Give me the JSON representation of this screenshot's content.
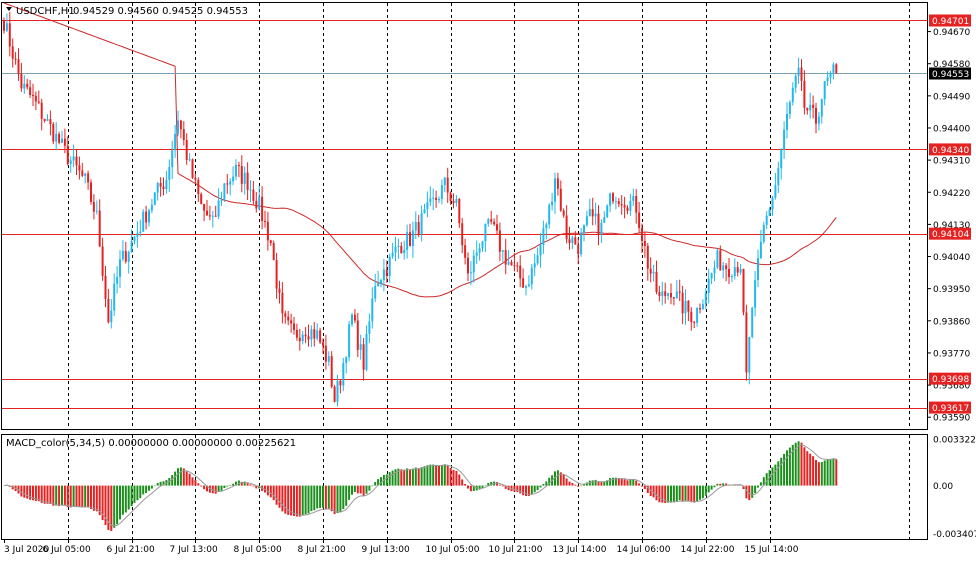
{
  "header": {
    "symbol_text": "USDCHF,H1",
    "ohlc_text": "0.94529 0.94560 0.94525 0.94553"
  },
  "macd_header": {
    "text": "MACD_color(5,34,5) 0.00000000 0.00000000 0.00225621"
  },
  "colors": {
    "bull": "#22b7ee",
    "bear": "#e52222",
    "ma": "#cc2a2a",
    "hline": "#e52222",
    "current_line": "#7a9fb5",
    "macd_up": "#1b8f1b",
    "macd_down": "#e52222",
    "signal": "#9a9a9a",
    "grid": "#000000",
    "axis_text": "#000000",
    "tag_bg": "#e52222",
    "tag_text": "#ffffff",
    "current_tag_bg": "#000000"
  },
  "chart_data": {
    "type": "candlestick",
    "symbol": "USDCHF",
    "timeframe": "H1",
    "price_ylim": [
      0.93557,
      0.9475
    ],
    "price_ticks": [
      "0.94670",
      "0.94580",
      "0.94490",
      "0.94400",
      "0.94310",
      "0.94220",
      "0.94130",
      "0.94040",
      "0.93950",
      "0.93860",
      "0.93770",
      "0.93680",
      "0.93590"
    ],
    "horizontal_lines": [
      "0.94701",
      "0.94340",
      "0.94104",
      "0.93698",
      "0.93617"
    ],
    "current_price": "0.94553",
    "x_labels": [
      "3 Jul 2020",
      "6 Jul 05:00",
      "6 Jul 21:00",
      "7 Jul 13:00",
      "8 Jul 05:00",
      "8 Jul 21:00",
      "9 Jul 13:00",
      "10 Jul 05:00",
      "10 Jul 21:00",
      "13 Jul 14:00",
      "14 Jul 06:00",
      "14 Jul 22:00",
      "15 Jul 14:00"
    ],
    "macd": {
      "ticks": [
        "0.0033223",
        "0.00",
        "-0.0034078"
      ],
      "ylim": [
        -0.0038,
        0.0036
      ],
      "last": [
        "0.00000000",
        "0.00000000",
        "0.00225621"
      ]
    },
    "key_points": [
      [
        0,
        0.947
      ],
      [
        6,
        0.9452
      ],
      [
        10,
        0.9448
      ],
      [
        16,
        0.944
      ],
      [
        22,
        0.9432
      ],
      [
        28,
        0.9425
      ],
      [
        32,
        0.9415
      ],
      [
        36,
        0.9386
      ],
      [
        40,
        0.9402
      ],
      [
        46,
        0.9411
      ],
      [
        52,
        0.9421
      ],
      [
        56,
        0.9426
      ],
      [
        60,
        0.9443
      ],
      [
        64,
        0.9429
      ],
      [
        68,
        0.9418
      ],
      [
        72,
        0.9413
      ],
      [
        76,
        0.9424
      ],
      [
        80,
        0.9428
      ],
      [
        84,
        0.9425
      ],
      [
        88,
        0.9418
      ],
      [
        92,
        0.9408
      ],
      [
        96,
        0.9386
      ],
      [
        100,
        0.9382
      ],
      [
        104,
        0.9384
      ],
      [
        108,
        0.9382
      ],
      [
        112,
        0.9374
      ],
      [
        114,
        0.9364
      ],
      [
        116,
        0.937
      ],
      [
        120,
        0.9387
      ],
      [
        124,
        0.9374
      ],
      [
        128,
        0.9397
      ],
      [
        132,
        0.9401
      ],
      [
        136,
        0.9407
      ],
      [
        140,
        0.9409
      ],
      [
        144,
        0.9414
      ],
      [
        148,
        0.9419
      ],
      [
        152,
        0.9424
      ],
      [
        156,
        0.9418
      ],
      [
        160,
        0.9398
      ],
      [
        164,
        0.9408
      ],
      [
        168,
        0.9413
      ],
      [
        172,
        0.9405
      ],
      [
        176,
        0.94
      ],
      [
        180,
        0.9396
      ],
      [
        184,
        0.9404
      ],
      [
        188,
        0.9417
      ],
      [
        190,
        0.9427
      ],
      [
        194,
        0.941
      ],
      [
        198,
        0.9407
      ],
      [
        202,
        0.9415
      ],
      [
        206,
        0.9412
      ],
      [
        210,
        0.9422
      ],
      [
        214,
        0.942
      ],
      [
        218,
        0.9418
      ],
      [
        222,
        0.9402
      ],
      [
        226,
        0.9392
      ],
      [
        230,
        0.9395
      ],
      [
        234,
        0.939
      ],
      [
        238,
        0.9387
      ],
      [
        242,
        0.9395
      ],
      [
        246,
        0.9403
      ],
      [
        250,
        0.9401
      ],
      [
        254,
        0.9402
      ],
      [
        256,
        0.937
      ],
      [
        258,
        0.939
      ],
      [
        262,
        0.9412
      ],
      [
        266,
        0.9424
      ],
      [
        270,
        0.9443
      ],
      [
        272,
        0.945
      ],
      [
        274,
        0.9455
      ],
      [
        276,
        0.9446
      ],
      [
        280,
        0.9442
      ],
      [
        282,
        0.9449
      ],
      [
        284,
        0.9453
      ],
      [
        286,
        0.94553
      ]
    ]
  }
}
